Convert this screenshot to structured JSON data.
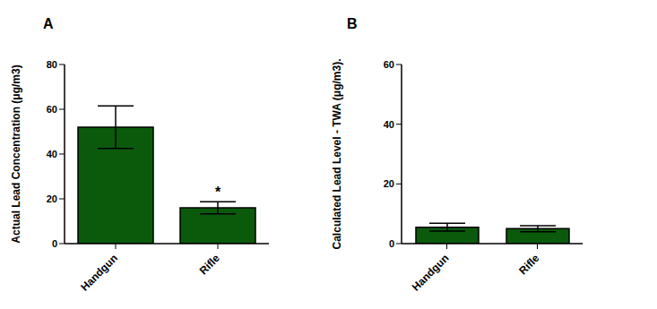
{
  "chart_data": [
    {
      "type": "bar",
      "title": "A",
      "y_label": "Actual Lead Concentration (μg/m3)",
      "categories": [
        "Handgun",
        "Rifle"
      ],
      "values": [
        52,
        16
      ],
      "errors": [
        9.5,
        2.7
      ],
      "color": "#0b5a0b",
      "ylim": [
        0,
        80
      ],
      "yticks": [
        0,
        20,
        40,
        60,
        80
      ],
      "annotations": [
        {
          "text": "*",
          "category": "Rifle"
        }
      ]
    },
    {
      "type": "bar",
      "title": "B",
      "y_label": "Calculated Lead Level - TWA  (μg/m3).",
      "categories": [
        "Handgun",
        "Rifle"
      ],
      "values": [
        5.5,
        5
      ],
      "errors": [
        1.3,
        1
      ],
      "color": "#0b5a0b",
      "ylim": [
        0,
        60
      ],
      "yticks": [
        0,
        20,
        40,
        60
      ]
    }
  ]
}
